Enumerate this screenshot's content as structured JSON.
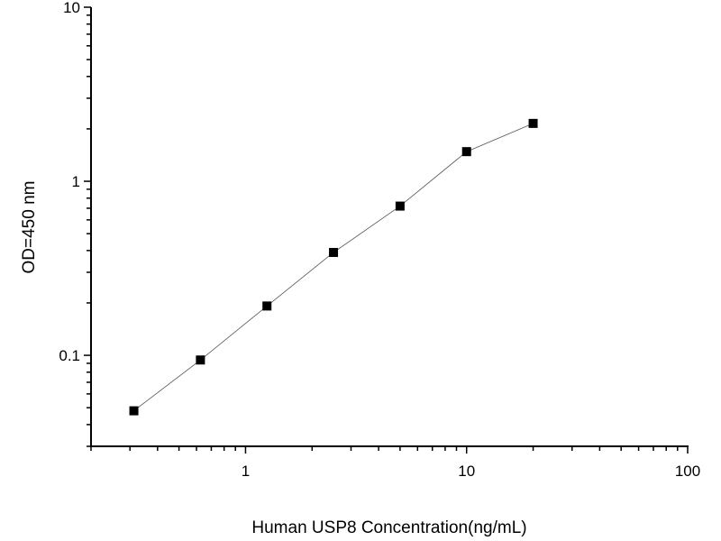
{
  "chart_data": {
    "type": "line",
    "title": "",
    "xlabel": "Human USP8 Concentration(ng/mL)",
    "ylabel": "OD=450 nm",
    "x_scale": "log",
    "y_scale": "log",
    "xlim": [
      0.2,
      100
    ],
    "ylim": [
      0.03,
      10
    ],
    "x_ticks": [
      1,
      10,
      100
    ],
    "x_tick_labels": [
      "1",
      "10",
      "100"
    ],
    "y_ticks": [
      0.1,
      1,
      10
    ],
    "y_tick_labels": [
      "0.1",
      "1",
      "10"
    ],
    "grid": false,
    "marker": "square",
    "color": "#000000",
    "series": [
      {
        "x": [
          0.3125,
          0.625,
          1.25,
          2.5,
          5,
          10,
          20
        ],
        "y": [
          0.048,
          0.094,
          0.192,
          0.39,
          0.72,
          1.48,
          2.15
        ]
      }
    ]
  }
}
